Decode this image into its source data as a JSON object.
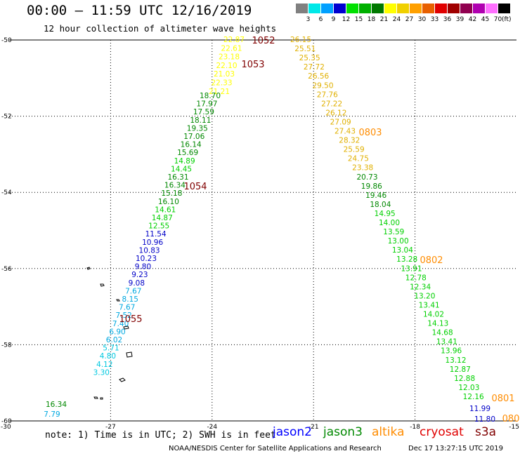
{
  "header": {
    "title": "00:00 – 11:59 UTC 12/16/2019",
    "subtitle": "12 hour collection of altimeter wave heights"
  },
  "legend": {
    "bins": [
      {
        "label": "3",
        "color": "#808080"
      },
      {
        "label": "6",
        "color": "#00e8e8"
      },
      {
        "label": "9",
        "color": "#00a0ff"
      },
      {
        "label": "12",
        "color": "#0000d0"
      },
      {
        "label": "15",
        "color": "#00e000"
      },
      {
        "label": "18",
        "color": "#00b000"
      },
      {
        "label": "21",
        "color": "#007800"
      },
      {
        "label": "24",
        "color": "#ffff00"
      },
      {
        "label": "27",
        "color": "#f0d000"
      },
      {
        "label": "30",
        "color": "#ffa000"
      },
      {
        "label": "33",
        "color": "#e86000"
      },
      {
        "label": "36",
        "color": "#e00000"
      },
      {
        "label": "39",
        "color": "#a00000"
      },
      {
        "label": "42",
        "color": "#900050"
      },
      {
        "label": "45",
        "color": "#b000b0"
      },
      {
        "label": "70",
        "color": "#ff70ff"
      },
      {
        "label": "",
        "color": "#000000"
      }
    ],
    "unit": "(ft)"
  },
  "map": {
    "lon_range": [
      -30,
      -15
    ],
    "lat_range": [
      -60,
      -50
    ],
    "lat_ticks": [
      "-50",
      "-52",
      "-54",
      "-56",
      "-58",
      "-60"
    ],
    "lon_ticks": [
      "-30",
      "-27",
      "-24",
      "-21",
      "-18",
      "-15"
    ],
    "track_west": [
      {
        "v": "22.87",
        "c": "#ffff00"
      },
      {
        "v": "22.61",
        "c": "#ffff00"
      },
      {
        "v": "23.18",
        "c": "#ffff00"
      },
      {
        "v": "22.10",
        "c": "#ffff00"
      },
      {
        "v": "21.03",
        "c": "#ffff00"
      },
      {
        "v": "22.33",
        "c": "#ffff00"
      },
      {
        "v": "21.21",
        "c": "#ffff00"
      },
      {
        "v": "18.70",
        "c": "#008800"
      },
      {
        "v": "17.97",
        "c": "#008800"
      },
      {
        "v": "17.59",
        "c": "#008800"
      },
      {
        "v": "18.11",
        "c": "#008800"
      },
      {
        "v": "19.35",
        "c": "#008800"
      },
      {
        "v": "17.06",
        "c": "#008800"
      },
      {
        "v": "16.14",
        "c": "#008800"
      },
      {
        "v": "15.69",
        "c": "#008800"
      },
      {
        "v": "14.89",
        "c": "#00d000"
      },
      {
        "v": "14.45",
        "c": "#00d000"
      },
      {
        "v": "16.31",
        "c": "#008800"
      },
      {
        "v": "16.34",
        "c": "#008800"
      },
      {
        "v": "15.18",
        "c": "#008800"
      },
      {
        "v": "16.10",
        "c": "#008800"
      },
      {
        "v": "14.61",
        "c": "#00d000"
      },
      {
        "v": "14.87",
        "c": "#00d000"
      },
      {
        "v": "12.55",
        "c": "#00d000"
      },
      {
        "v": "11.54",
        "c": "#0000c8"
      },
      {
        "v": "10.96",
        "c": "#0000c8"
      },
      {
        "v": "10.83",
        "c": "#0000c8"
      },
      {
        "v": "10.23",
        "c": "#0000c8"
      },
      {
        "v": "9.80",
        "c": "#0000c8"
      },
      {
        "v": "9.23",
        "c": "#0000c8"
      },
      {
        "v": "9.08",
        "c": "#0000c8"
      },
      {
        "v": "7.67",
        "c": "#00a8e0"
      },
      {
        "v": "8.15",
        "c": "#00a8e0"
      },
      {
        "v": "7.67",
        "c": "#00a8e0"
      },
      {
        "v": "7.52",
        "c": "#00a8e0"
      },
      {
        "v": "7.40",
        "c": "#00a8e0"
      },
      {
        "v": "6.90",
        "c": "#00a8e0"
      },
      {
        "v": "6.02",
        "c": "#00a8e0"
      },
      {
        "v": "5.71",
        "c": "#00c8e0"
      },
      {
        "v": "4.80",
        "c": "#00c8e0"
      },
      {
        "v": "4.12",
        "c": "#00c8e0"
      },
      {
        "v": "3.30",
        "c": "#00c8e0"
      },
      {
        "v": "16.34",
        "c": "#008800"
      },
      {
        "v": "7.79",
        "c": "#00a8e0"
      }
    ],
    "track_east": [
      {
        "v": "26.15",
        "c": "#e0b000"
      },
      {
        "v": "25.51",
        "c": "#e0b000"
      },
      {
        "v": "25.35",
        "c": "#e0b000"
      },
      {
        "v": "27.72",
        "c": "#e0b000"
      },
      {
        "v": "26.56",
        "c": "#e0b000"
      },
      {
        "v": "29.50",
        "c": "#e0b000"
      },
      {
        "v": "27.76",
        "c": "#e0b000"
      },
      {
        "v": "27.22",
        "c": "#e0b000"
      },
      {
        "v": "26.12",
        "c": "#e0b000"
      },
      {
        "v": "27.09",
        "c": "#e0b000"
      },
      {
        "v": "27.43",
        "c": "#e0b000"
      },
      {
        "v": "28.32",
        "c": "#e0b000"
      },
      {
        "v": "25.59",
        "c": "#e0b000"
      },
      {
        "v": "24.75",
        "c": "#e0b000"
      },
      {
        "v": "23.38",
        "c": "#e0b000"
      },
      {
        "v": "20.73",
        "c": "#008800"
      },
      {
        "v": "19.86",
        "c": "#008800"
      },
      {
        "v": "19.46",
        "c": "#008800"
      },
      {
        "v": "18.04",
        "c": "#008800"
      },
      {
        "v": "14.95",
        "c": "#00d000"
      },
      {
        "v": "14.00",
        "c": "#00d000"
      },
      {
        "v": "13.59",
        "c": "#00d000"
      },
      {
        "v": "13.00",
        "c": "#00d000"
      },
      {
        "v": "13.04",
        "c": "#00d000"
      },
      {
        "v": "13.28",
        "c": "#00d000"
      },
      {
        "v": "13.91",
        "c": "#00d000"
      },
      {
        "v": "12.78",
        "c": "#00d000"
      },
      {
        "v": "12.34",
        "c": "#00d000"
      },
      {
        "v": "13.20",
        "c": "#00d000"
      },
      {
        "v": "13.41",
        "c": "#00d000"
      },
      {
        "v": "14.02",
        "c": "#00d000"
      },
      {
        "v": "14.13",
        "c": "#00d000"
      },
      {
        "v": "14.68",
        "c": "#00d000"
      },
      {
        "v": "13.41",
        "c": "#00d000"
      },
      {
        "v": "13.96",
        "c": "#00d000"
      },
      {
        "v": "13.12",
        "c": "#00d000"
      },
      {
        "v": "12.87",
        "c": "#00d000"
      },
      {
        "v": "12.88",
        "c": "#00d000"
      },
      {
        "v": "12.03",
        "c": "#00d000"
      },
      {
        "v": "12.16",
        "c": "#00d000"
      },
      {
        "v": "11.99",
        "c": "#0000c8"
      },
      {
        "v": "11.80",
        "c": "#0000c8"
      }
    ],
    "time_labels": [
      {
        "text": "1052",
        "color": "#800000"
      },
      {
        "text": "1053",
        "color": "#800000"
      },
      {
        "text": "1054",
        "color": "#800000"
      },
      {
        "text": "1055",
        "color": "#800000"
      },
      {
        "text": "0803",
        "color": "#ff8c00"
      },
      {
        "text": "0802",
        "color": "#ff8c00"
      },
      {
        "text": "0801",
        "color": "#ff8c00"
      },
      {
        "text": "080",
        "color": "#ff8c00"
      }
    ]
  },
  "footer": {
    "note": "note: 1) Time is in UTC; 2) SWH is in feet",
    "satellites": [
      {
        "name": "jason2",
        "color": "#0000ff"
      },
      {
        "name": "jason3",
        "color": "#008800"
      },
      {
        "name": "altika",
        "color": "#ff8c00"
      },
      {
        "name": "cryosat",
        "color": "#e00000"
      },
      {
        "name": "s3a",
        "color": "#800000"
      }
    ],
    "credit": "NOAA/NESDIS Center for Satellite Applications and Research",
    "timestamp": "Dec 17 13:27:15 UTC 2019"
  }
}
